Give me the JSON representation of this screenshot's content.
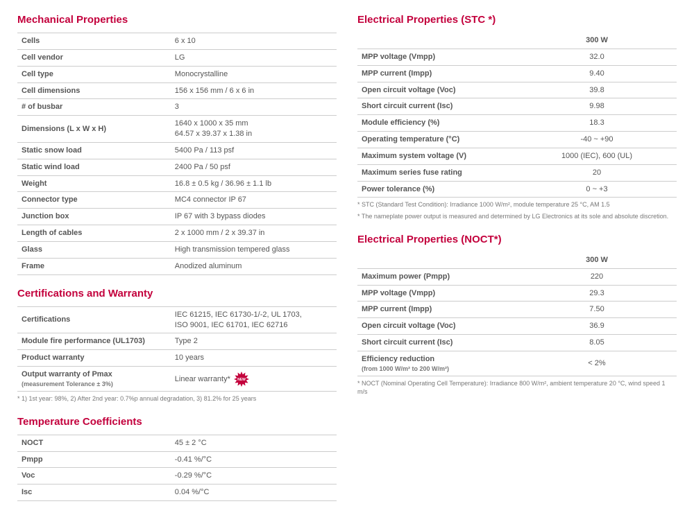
{
  "colors": {
    "accent": "#c3003c",
    "text": "#555555",
    "border": "#cccccc",
    "footnote": "#777777",
    "badge_fill": "#c3003c",
    "badge_text": "#ffffff"
  },
  "left": {
    "mechanical": {
      "title": "Mechanical Properties",
      "rows": [
        {
          "label": "Cells",
          "value": "6 x 10"
        },
        {
          "label": "Cell vendor",
          "value": "LG"
        },
        {
          "label": "Cell type",
          "value": "Monocrystalline"
        },
        {
          "label": "Cell dimensions",
          "value": "156 x 156 mm / 6 x 6 in"
        },
        {
          "label": "# of busbar",
          "value": "3"
        },
        {
          "label": "Dimensions (L x W x H)",
          "value": "1640 x 1000 x 35 mm\n64.57 x 39.37 x 1.38 in"
        },
        {
          "label": "Static snow load",
          "value": "5400 Pa / 113 psf"
        },
        {
          "label": "Static wind load",
          "value": "2400 Pa / 50 psf"
        },
        {
          "label": "Weight",
          "value": "16.8 ± 0.5 kg / 36.96 ± 1.1 lb"
        },
        {
          "label": "Connector type",
          "value": "MC4 connector IP 67"
        },
        {
          "label": "Junction box",
          "value": "IP 67 with 3 bypass diodes"
        },
        {
          "label": "Length of cables",
          "value": "2 x 1000 mm / 2 x 39.37 in"
        },
        {
          "label": "Glass",
          "value": "High transmission tempered glass"
        },
        {
          "label": "Frame",
          "value": "Anodized aluminum"
        }
      ]
    },
    "cert": {
      "title": "Certifications and Warranty",
      "rows": [
        {
          "label": "Certifications",
          "value": "IEC 61215, IEC 61730-1/-2, UL 1703,\nISO 9001, IEC 61701, IEC 62716"
        },
        {
          "label": "Module fire performance (UL1703)",
          "value": "Type 2"
        },
        {
          "label": "Product warranty",
          "value": "10 years"
        },
        {
          "label": "Output warranty of Pmax",
          "sublabel": "(measurement Tolerance ± 3%)",
          "value": "Linear warranty*",
          "badge": "NEW"
        }
      ],
      "footnote": "* 1) 1st year: 98%, 2) After 2nd year: 0.7%p annual degradation, 3) 81.2% for 25 years"
    },
    "temp": {
      "title": "Temperature Coefficients",
      "rows": [
        {
          "label": "NOCT",
          "value": "45 ± 2 °C"
        },
        {
          "label": "Pmpp",
          "value": "-0.41 %/°C"
        },
        {
          "label": "Voc",
          "value": "-0.29 %/°C"
        },
        {
          "label": "Isc",
          "value": "0.04 %/°C"
        }
      ]
    }
  },
  "right": {
    "stc": {
      "title": "Electrical Properties (STC *)",
      "header": "300 W",
      "rows": [
        {
          "label": "MPP voltage (Vmpp)",
          "value": "32.0"
        },
        {
          "label": "MPP current (Impp)",
          "value": "9.40"
        },
        {
          "label": "Open circuit voltage (Voc)",
          "value": "39.8"
        },
        {
          "label": "Short circuit current (Isc)",
          "value": "9.98"
        },
        {
          "label": "Module efficiency (%)",
          "value": "18.3"
        },
        {
          "label": "Operating temperature (°C)",
          "value": "-40 ~ +90"
        },
        {
          "label": "Maximum system voltage (V)",
          "value": "1000 (IEC), 600 (UL)"
        },
        {
          "label": "Maximum series fuse rating",
          "value": "20"
        },
        {
          "label": "Power tolerance (%)",
          "value": "0 ~ +3"
        }
      ],
      "footnote1": "* STC (Standard Test Condition): Irradiance 1000 W/m², module temperature 25 °C, AM 1.5",
      "footnote2": "* The nameplate power output is measured and determined by LG Electronics at its sole and absolute discretion."
    },
    "noct": {
      "title": "Electrical Properties (NOCT*)",
      "header": "300 W",
      "rows": [
        {
          "label": "Maximum power (Pmpp)",
          "value": "220"
        },
        {
          "label": "MPP voltage (Vmpp)",
          "value": "29.3"
        },
        {
          "label": "MPP current (Impp)",
          "value": "7.50"
        },
        {
          "label": "Open circuit voltage (Voc)",
          "value": "36.9"
        },
        {
          "label": "Short circuit current (Isc)",
          "value": "8.05"
        },
        {
          "label": "Efficiency reduction",
          "sublabel": "(from 1000 W/m² to 200 W/m²)",
          "value": "< 2%"
        }
      ],
      "footnote": "* NOCT (Nominal Operating Cell Temperature): Irradiance 800 W/m², ambient temperature 20 °C, wind speed 1 m/s"
    }
  }
}
